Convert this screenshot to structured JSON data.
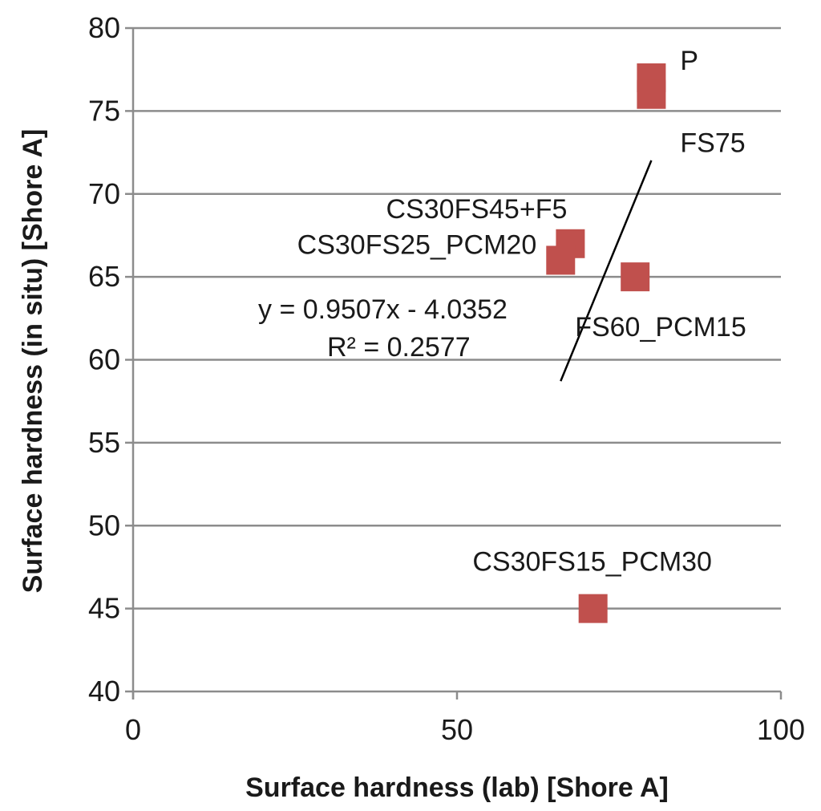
{
  "chart_data": {
    "type": "scatter",
    "title": "",
    "xlabel": "Surface hardness (lab) [Shore A]",
    "ylabel": "Surface hardness (in situ) [Shore A]",
    "xlim": [
      0,
      100
    ],
    "ylim": [
      40,
      80
    ],
    "x_ticks": [
      0,
      50,
      100
    ],
    "y_ticks": [
      40,
      45,
      50,
      55,
      60,
      65,
      70,
      75,
      80
    ],
    "grid": "horizontal",
    "marker": "square",
    "marker_color": "#c0504d",
    "points": [
      {
        "label": "P",
        "x": 80,
        "y": 77
      },
      {
        "label": "FS75",
        "x": 80,
        "y": 76
      },
      {
        "label": "CS30FS45+F5",
        "x": 67.5,
        "y": 67
      },
      {
        "label": "CS30FS25_PCM20",
        "x": 66,
        "y": 66
      },
      {
        "label": "FS60_PCM15",
        "x": 77.5,
        "y": 65
      },
      {
        "label": "CS30FS15_PCM30",
        "x": 71,
        "y": 45
      }
    ],
    "trendline": {
      "slope": 0.9507,
      "intercept": -4.0352,
      "x_range": [
        66,
        80
      ],
      "equation": "y = 0.9507x - 4.0352",
      "r_squared": "R² = 0.2577"
    }
  }
}
